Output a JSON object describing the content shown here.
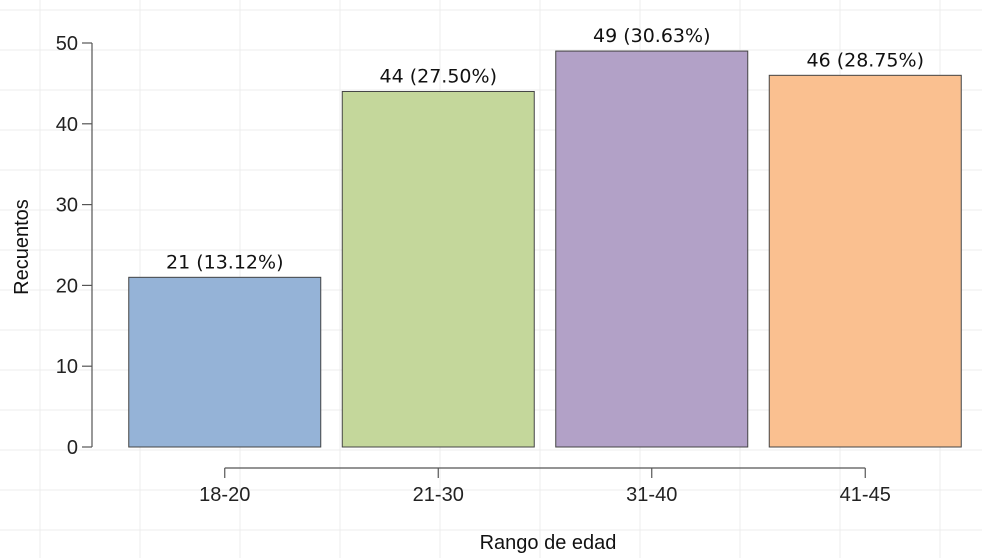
{
  "chart_data": {
    "type": "bar",
    "title": "",
    "xlabel": "Rango de edad",
    "ylabel": "Recuentos",
    "categories": [
      "18-20",
      "21-30",
      "31-40",
      "41-45"
    ],
    "values": [
      21,
      44,
      49,
      46
    ],
    "data_labels": [
      "21 (13.12%)",
      "44 (27.50%)",
      "49 (30.63%)",
      "46 (28.75%)"
    ],
    "colors": [
      "#95b3d7",
      "#c4d79b",
      "#b2a1c7",
      "#fac090"
    ],
    "ylim": [
      0,
      50
    ],
    "yticks": [
      0,
      10,
      20,
      30,
      40,
      50
    ],
    "grid": true,
    "legend": "none"
  }
}
